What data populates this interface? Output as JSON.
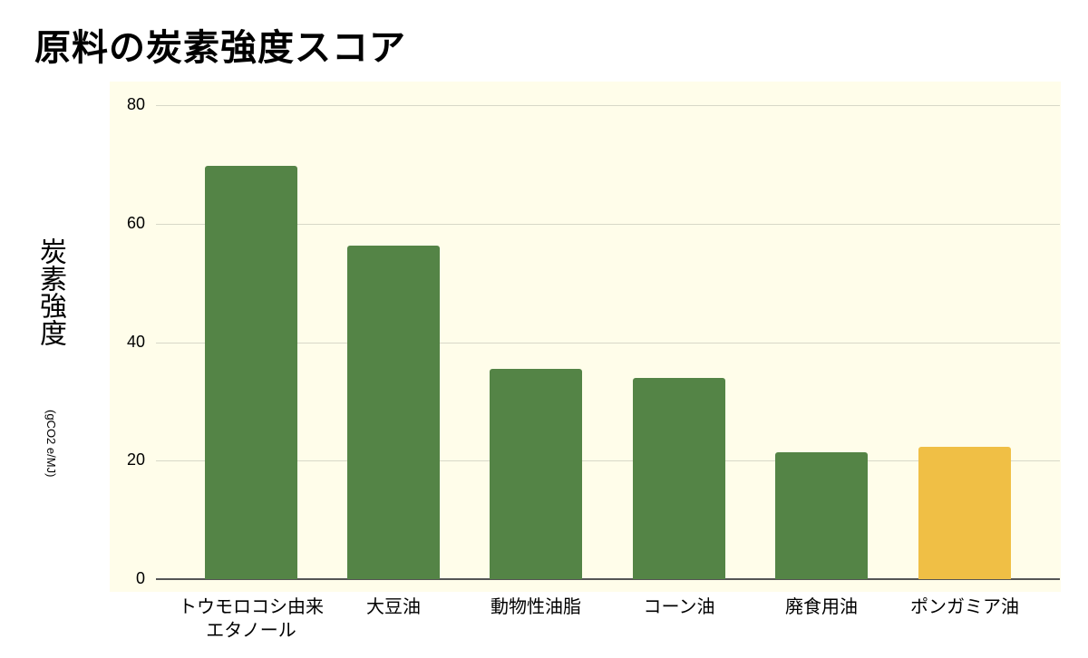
{
  "title": "原料の炭素強度スコア",
  "colors": {
    "green": "#548446",
    "yellow": "#f0bf45",
    "background": "#fffdea",
    "grid": "#d8d8c8"
  },
  "chart_data": {
    "type": "bar",
    "title": "原料の炭素強度スコア",
    "xlabel": "",
    "ylabel": "炭素強度",
    "ylabel_unit": "(gCO2 e/MJ)",
    "ylim": [
      0,
      80
    ],
    "yticks": [
      "0",
      "20",
      "40",
      "60",
      "80"
    ],
    "grid": true,
    "legend": "none",
    "categories": [
      "トウモロコシ由来エタノール",
      "大豆油",
      "動物性油脂",
      "コーン油",
      "廃食用油",
      "ポンガミア油"
    ],
    "category_lines": [
      [
        "トウモロコシ由来",
        "エタノール"
      ],
      [
        "大豆油"
      ],
      [
        "動物性油脂"
      ],
      [
        "コーン油"
      ],
      [
        "廃食用油"
      ],
      [
        "ポンガミア油"
      ]
    ],
    "values": [
      69.7,
      56.3,
      35.5,
      33.9,
      21.4,
      22.3
    ],
    "bar_colors": [
      "#548446",
      "#548446",
      "#548446",
      "#548446",
      "#548446",
      "#f0bf45"
    ]
  }
}
